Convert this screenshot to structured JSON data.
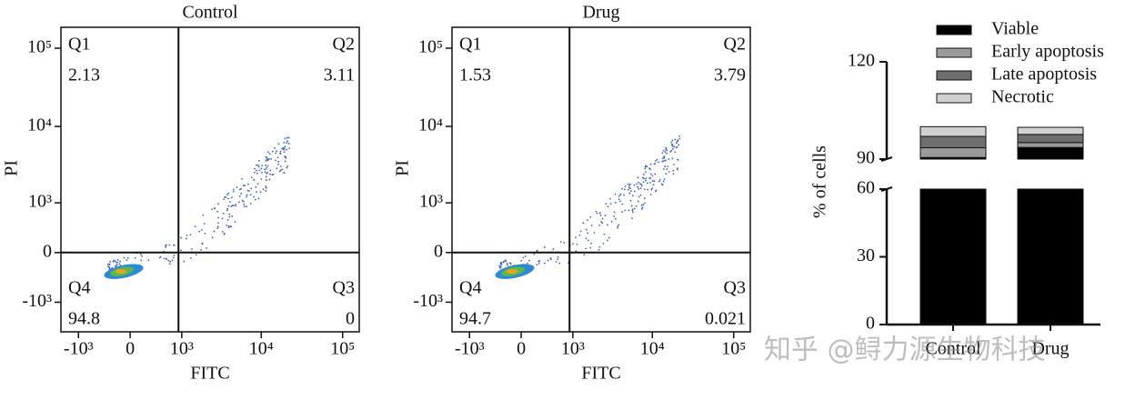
{
  "chart_data": [
    {
      "type": "scatter",
      "title": "Control",
      "x_label": "FITC",
      "y_label": "PI",
      "scale": "biexponential",
      "xlim": [
        -1700,
        160000
      ],
      "ylim": [
        -2500,
        185000
      ],
      "xticks": [
        {
          "value": -1000,
          "label": "-10³"
        },
        0,
        {
          "value": 1000,
          "label": "10³"
        },
        {
          "value": 10000,
          "label": "10⁴"
        },
        {
          "value": 100000,
          "label": "10⁵"
        }
      ],
      "yticks": [
        {
          "value": -1000,
          "label": "-10³"
        },
        0,
        {
          "value": 1000,
          "label": "10³"
        },
        {
          "value": 10000,
          "label": "10⁴"
        },
        {
          "value": 100000,
          "label": "10⁵"
        }
      ],
      "gates": {
        "x": 900,
        "y": 0
      },
      "quadrants": [
        {
          "name": "Q1",
          "value": 2.13
        },
        {
          "name": "Q2",
          "value": 3.11
        },
        {
          "name": "Q3",
          "value": 0
        },
        {
          "name": "Q4",
          "value": 94.8
        }
      ]
    },
    {
      "type": "scatter",
      "title": "Drug",
      "x_label": "FITC",
      "y_label": "PI",
      "scale": "biexponential",
      "xlim": [
        -1700,
        160000
      ],
      "ylim": [
        -2500,
        185000
      ],
      "xticks": [
        {
          "value": -1000,
          "label": "-10³"
        },
        0,
        {
          "value": 1000,
          "label": "10³"
        },
        {
          "value": 10000,
          "label": "10⁴"
        },
        {
          "value": 100000,
          "label": "10⁵"
        }
      ],
      "yticks": [
        {
          "value": -1000,
          "label": "-10³"
        },
        0,
        {
          "value": 1000,
          "label": "10³"
        },
        {
          "value": 10000,
          "label": "10⁴"
        },
        {
          "value": 100000,
          "label": "10⁵"
        }
      ],
      "gates": {
        "x": 900,
        "y": 0
      },
      "quadrants": [
        {
          "name": "Q1",
          "value": 1.53
        },
        {
          "name": "Q2",
          "value": 3.79
        },
        {
          "name": "Q3",
          "value": 0.021
        },
        {
          "name": "Q4",
          "value": 94.7
        }
      ]
    },
    {
      "type": "bar",
      "y_label": "% of cells",
      "categories": [
        "Control",
        "Drug"
      ],
      "ylim": [
        0,
        120
      ],
      "y_break": [
        60,
        90
      ],
      "yticks": [
        0,
        30,
        60,
        90,
        120
      ],
      "series": [
        {
          "name": "Viable",
          "color": "#000000",
          "values": [
            90.5,
            93.6
          ]
        },
        {
          "name": "Early apoptosis",
          "color": "#9a9a9a",
          "values": [
            3,
            1.5
          ]
        },
        {
          "name": "Late apoptosis",
          "color": "#6e6e6e",
          "values": [
            3.5,
            2.5
          ]
        },
        {
          "name": "Necrotic",
          "color": "#d0d0d0",
          "values": [
            3,
            2.2
          ]
        }
      ]
    }
  ],
  "watermark": "知乎 @鲟力源生物科技"
}
